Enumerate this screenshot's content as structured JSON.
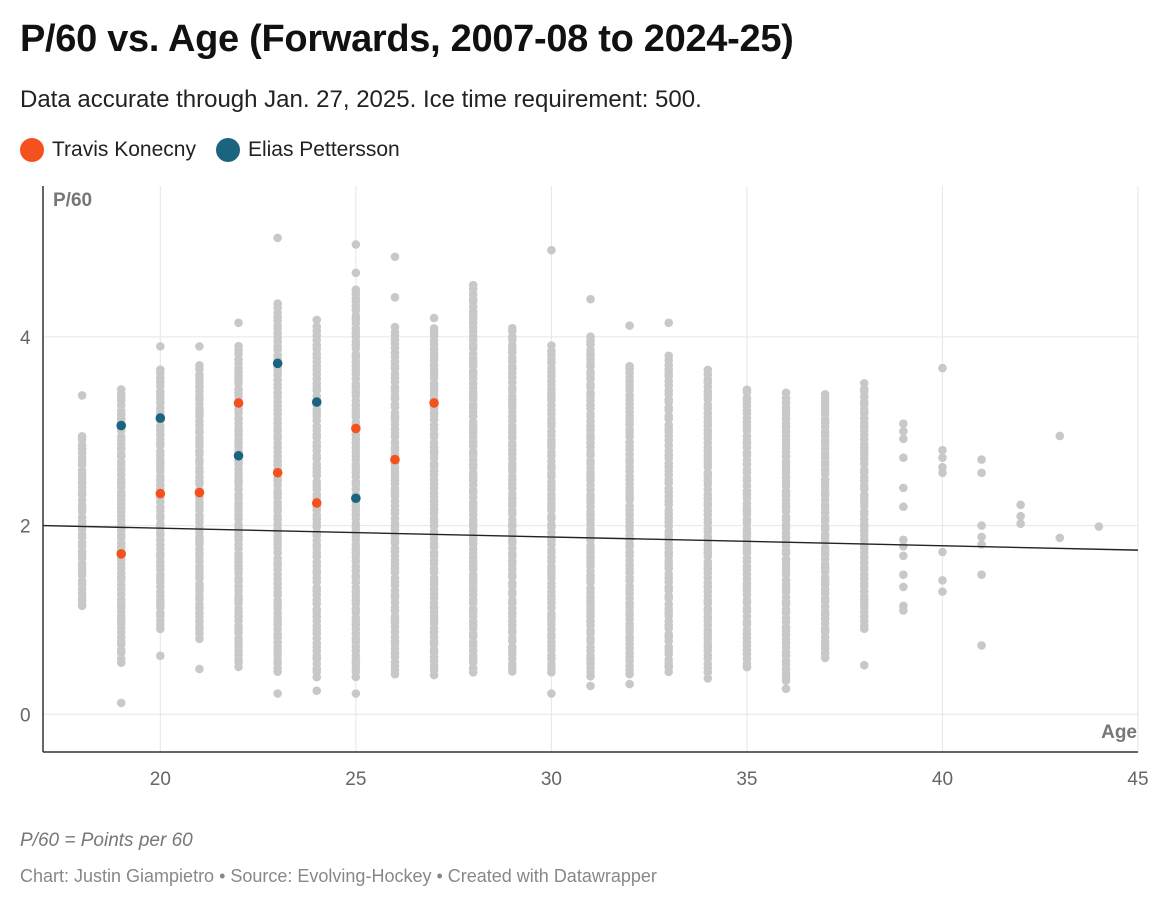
{
  "header": {
    "title": "P/60 vs. Age (Forwards, 2007-08 to 2024-25)",
    "subtitle": "Data accurate through Jan. 27, 2025. Ice time requirement: 500."
  },
  "legend": {
    "items": [
      {
        "label": "Travis Konecny",
        "color": "#f4511e"
      },
      {
        "label": "Elias Pettersson",
        "color": "#1b6480"
      }
    ]
  },
  "footer": {
    "notes": "P/60 = Points per 60",
    "credits": "Chart: Justin Giampietro • Source: Evolving-Hockey • Created with Datawrapper"
  },
  "chart_data": {
    "type": "scatter",
    "xlabel": "Age",
    "ylabel": "P/60",
    "xlim": [
      17,
      45
    ],
    "ylim": [
      -0.4,
      5.6
    ],
    "x_ticks": [
      20,
      25,
      30,
      35,
      40,
      45
    ],
    "y_ticks": [
      0,
      2,
      4
    ],
    "grid": true,
    "legend_position": "top-left",
    "background_color": "#c8c8c8",
    "background_range": [
      {
        "age": 18,
        "min": 1.15,
        "max": 2.95
      },
      {
        "age": 19,
        "min": 0.55,
        "max": 3.45
      },
      {
        "age": 20,
        "min": 0.9,
        "max": 3.65
      },
      {
        "age": 21,
        "min": 0.8,
        "max": 3.7
      },
      {
        "age": 22,
        "min": 0.5,
        "max": 3.9
      },
      {
        "age": 23,
        "min": 0.45,
        "max": 4.35
      },
      {
        "age": 24,
        "min": 0.4,
        "max": 4.1
      },
      {
        "age": 25,
        "min": 0.4,
        "max": 4.5
      },
      {
        "age": 26,
        "min": 0.42,
        "max": 4.1
      },
      {
        "age": 27,
        "min": 0.42,
        "max": 4.1
      },
      {
        "age": 28,
        "min": 0.45,
        "max": 4.5
      },
      {
        "age": 29,
        "min": 0.45,
        "max": 4.1
      },
      {
        "age": 30,
        "min": 0.45,
        "max": 3.9
      },
      {
        "age": 31,
        "min": 0.4,
        "max": 4.0
      },
      {
        "age": 32,
        "min": 0.42,
        "max": 3.7
      },
      {
        "age": 33,
        "min": 0.45,
        "max": 3.8
      },
      {
        "age": 34,
        "min": 0.45,
        "max": 3.6
      },
      {
        "age": 35,
        "min": 0.5,
        "max": 3.45
      },
      {
        "age": 36,
        "min": 0.35,
        "max": 3.4
      },
      {
        "age": 37,
        "min": 0.6,
        "max": 3.4
      },
      {
        "age": 38,
        "min": 0.9,
        "max": 3.5
      }
    ],
    "background_extra": [
      {
        "x": 18,
        "y": 3.38
      },
      {
        "x": 19,
        "y": 0.12
      },
      {
        "x": 20,
        "y": 3.9
      },
      {
        "x": 20,
        "y": 0.62
      },
      {
        "x": 21,
        "y": 3.9
      },
      {
        "x": 21,
        "y": 0.48
      },
      {
        "x": 22,
        "y": 4.15
      },
      {
        "x": 23,
        "y": 5.05
      },
      {
        "x": 23,
        "y": 0.22
      },
      {
        "x": 24,
        "y": 4.18
      },
      {
        "x": 24,
        "y": 0.25
      },
      {
        "x": 25,
        "y": 4.98
      },
      {
        "x": 25,
        "y": 4.68
      },
      {
        "x": 25,
        "y": 0.22
      },
      {
        "x": 26,
        "y": 4.85
      },
      {
        "x": 26,
        "y": 4.42
      },
      {
        "x": 27,
        "y": 4.2
      },
      {
        "x": 28,
        "y": 4.55
      },
      {
        "x": 30,
        "y": 4.92
      },
      {
        "x": 30,
        "y": 0.22
      },
      {
        "x": 31,
        "y": 4.4
      },
      {
        "x": 31,
        "y": 0.3
      },
      {
        "x": 32,
        "y": 4.12
      },
      {
        "x": 32,
        "y": 0.32
      },
      {
        "x": 33,
        "y": 4.15
      },
      {
        "x": 34,
        "y": 3.65
      },
      {
        "x": 34,
        "y": 0.38
      },
      {
        "x": 36,
        "y": 0.27
      },
      {
        "x": 38,
        "y": 0.52
      },
      {
        "x": 39,
        "y": 3.08
      },
      {
        "x": 39,
        "y": 3.0
      },
      {
        "x": 39,
        "y": 2.92
      },
      {
        "x": 39,
        "y": 2.72
      },
      {
        "x": 39,
        "y": 2.4
      },
      {
        "x": 39,
        "y": 2.2
      },
      {
        "x": 39,
        "y": 1.85
      },
      {
        "x": 39,
        "y": 1.78
      },
      {
        "x": 39,
        "y": 1.68
      },
      {
        "x": 39,
        "y": 1.48
      },
      {
        "x": 39,
        "y": 1.35
      },
      {
        "x": 39,
        "y": 1.15
      },
      {
        "x": 39,
        "y": 1.1
      },
      {
        "x": 40,
        "y": 3.67
      },
      {
        "x": 40,
        "y": 2.8
      },
      {
        "x": 40,
        "y": 2.72
      },
      {
        "x": 40,
        "y": 2.62
      },
      {
        "x": 40,
        "y": 2.56
      },
      {
        "x": 40,
        "y": 1.72
      },
      {
        "x": 40,
        "y": 1.42
      },
      {
        "x": 40,
        "y": 1.3
      },
      {
        "x": 41,
        "y": 2.7
      },
      {
        "x": 41,
        "y": 2.56
      },
      {
        "x": 41,
        "y": 2.0
      },
      {
        "x": 41,
        "y": 1.88
      },
      {
        "x": 41,
        "y": 1.8
      },
      {
        "x": 41,
        "y": 1.48
      },
      {
        "x": 41,
        "y": 0.73
      },
      {
        "x": 42,
        "y": 2.22
      },
      {
        "x": 42,
        "y": 2.1
      },
      {
        "x": 42,
        "y": 2.02
      },
      {
        "x": 43,
        "y": 2.95
      },
      {
        "x": 43,
        "y": 1.87
      },
      {
        "x": 44,
        "y": 1.99
      }
    ],
    "trend_line": {
      "x": [
        17,
        45
      ],
      "y": [
        2.0,
        1.74
      ],
      "color": "#222222"
    },
    "series": [
      {
        "name": "Travis Konecny",
        "color": "#f4511e",
        "points": [
          {
            "x": 19,
            "y": 1.7
          },
          {
            "x": 20,
            "y": 2.34
          },
          {
            "x": 21,
            "y": 2.35
          },
          {
            "x": 22,
            "y": 3.3
          },
          {
            "x": 23,
            "y": 2.56
          },
          {
            "x": 24,
            "y": 2.24
          },
          {
            "x": 25,
            "y": 3.03
          },
          {
            "x": 26,
            "y": 2.7
          },
          {
            "x": 27,
            "y": 3.3
          }
        ]
      },
      {
        "name": "Elias Pettersson",
        "color": "#1b6480",
        "points": [
          {
            "x": 19,
            "y": 3.06
          },
          {
            "x": 20,
            "y": 3.14
          },
          {
            "x": 22,
            "y": 2.74
          },
          {
            "x": 23,
            "y": 3.72
          },
          {
            "x": 24,
            "y": 3.31
          },
          {
            "x": 25,
            "y": 2.29
          }
        ]
      }
    ]
  }
}
